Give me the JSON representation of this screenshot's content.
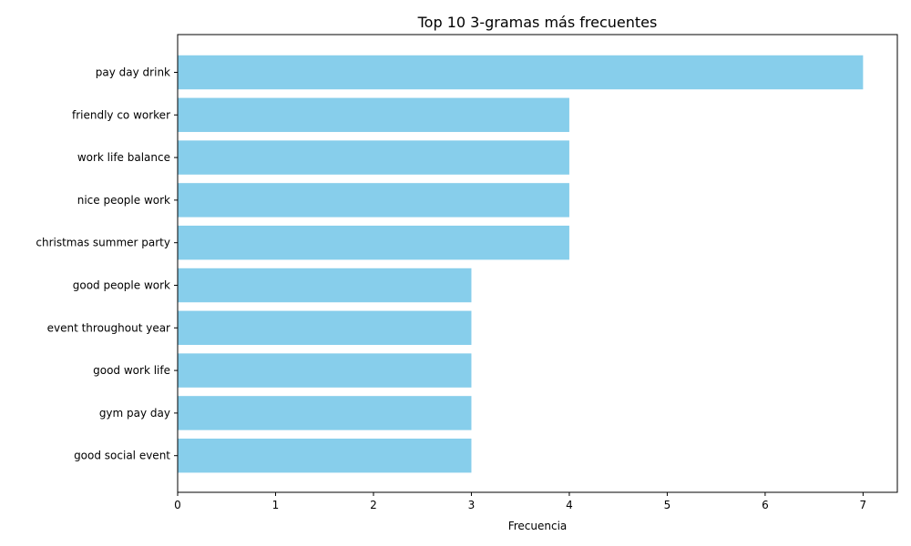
{
  "chart_data": {
    "type": "bar",
    "orientation": "horizontal",
    "title": "Top 10 3-gramas más frecuentes",
    "xlabel": "Frecuencia",
    "ylabel": "",
    "categories": [
      "pay day drink",
      "friendly co worker",
      "work life balance",
      "nice people work",
      "christmas summer party",
      "good people work",
      "event throughout year",
      "good work life",
      "gym pay day",
      "good social event"
    ],
    "values": [
      7,
      4,
      4,
      4,
      4,
      3,
      3,
      3,
      3,
      3
    ],
    "xlim": [
      0,
      7.35
    ],
    "xticks": [
      0,
      1,
      2,
      3,
      4,
      5,
      6,
      7
    ],
    "grid": false,
    "bar_color": "#87ceeb"
  }
}
